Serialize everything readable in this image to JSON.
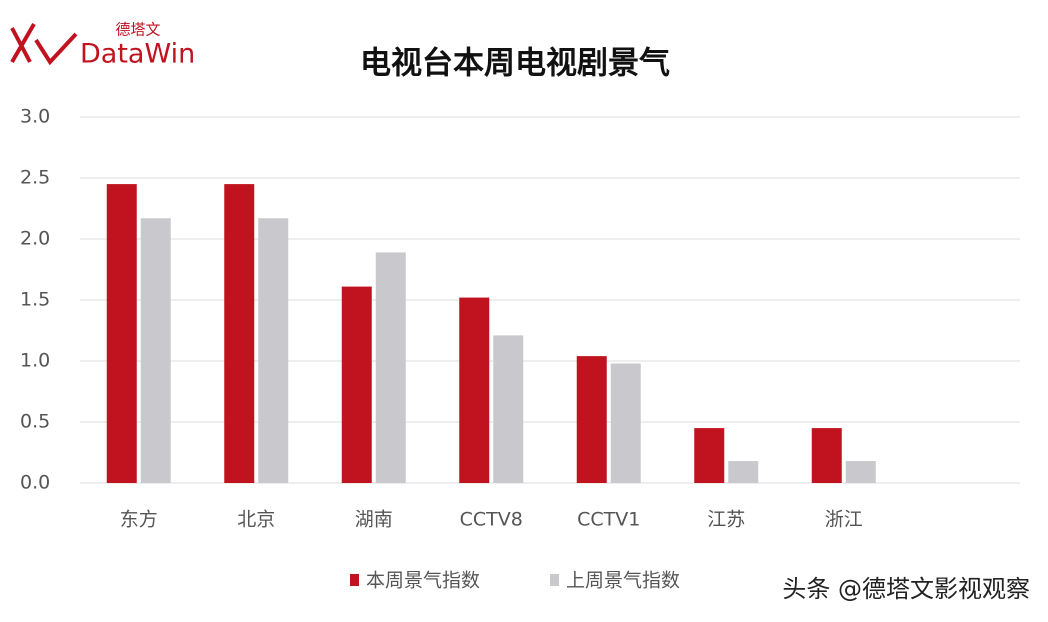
{
  "logo": {
    "brand": "DataWin",
    "cn": "德塔文"
  },
  "watermark": "头条 @德塔文影视观察",
  "chart_data": {
    "type": "bar",
    "title": "电视台本周电视剧景气",
    "categories": [
      "东方",
      "北京",
      "湖南",
      "CCTV8",
      "CCTV1",
      "江苏",
      "浙江",
      null
    ],
    "series": [
      {
        "name": "本周景气指数",
        "color": "#c1121f",
        "values": [
          2.45,
          2.45,
          1.61,
          1.52,
          1.04,
          0.45,
          0.45,
          null
        ]
      },
      {
        "name": "上周景气指数",
        "color": "#c9c9cd",
        "values": [
          2.17,
          2.17,
          1.89,
          1.21,
          0.98,
          0.18,
          0.18,
          null
        ]
      }
    ],
    "ylim": [
      0,
      3
    ],
    "yticks": [
      {
        "value": 0,
        "label": "0.0"
      },
      0.5,
      {
        "value": 1,
        "label": "1.0"
      },
      1.5,
      {
        "value": 2,
        "label": "2.0"
      },
      2.5,
      {
        "value": 3,
        "label": "3.0"
      }
    ],
    "grid": true,
    "legend": "bottom"
  }
}
